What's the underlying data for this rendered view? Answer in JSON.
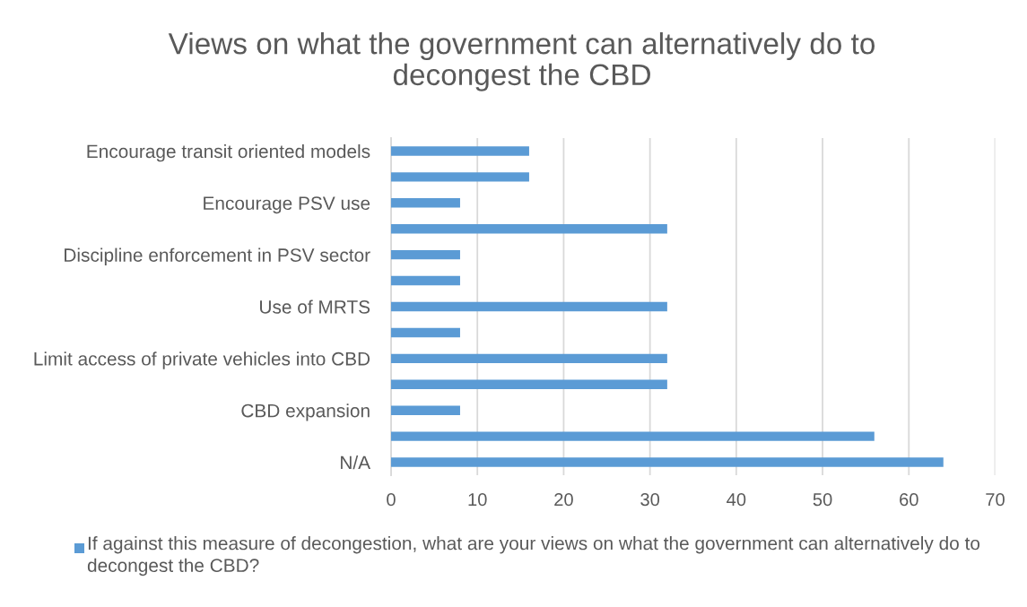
{
  "chart_data": {
    "type": "bar",
    "orientation": "horizontal",
    "title": "Views on what the government can alternatively do to decongest the CBD",
    "categories": [
      "Encourage transit oriented models",
      null,
      "Encourage PSV use",
      null,
      "Discipline enforcement in PSV sector",
      null,
      "Use of MRTS",
      null,
      "Limit access of private vehicles into CBD",
      null,
      "CBD expansion",
      null,
      "N/A"
    ],
    "series": [
      {
        "name": "If against this measure of decongestion, what are your views on what the government can alternatively do to decongest the CBD?",
        "color": "#5b9bd5",
        "values": [
          16,
          16,
          8,
          32,
          8,
          8,
          32,
          8,
          32,
          32,
          8,
          56,
          64
        ]
      }
    ],
    "xlim": [
      0,
      70
    ],
    "xticks": [
      0,
      10,
      20,
      30,
      40,
      50,
      60,
      70
    ],
    "grid": "x",
    "legend": "bottom"
  }
}
